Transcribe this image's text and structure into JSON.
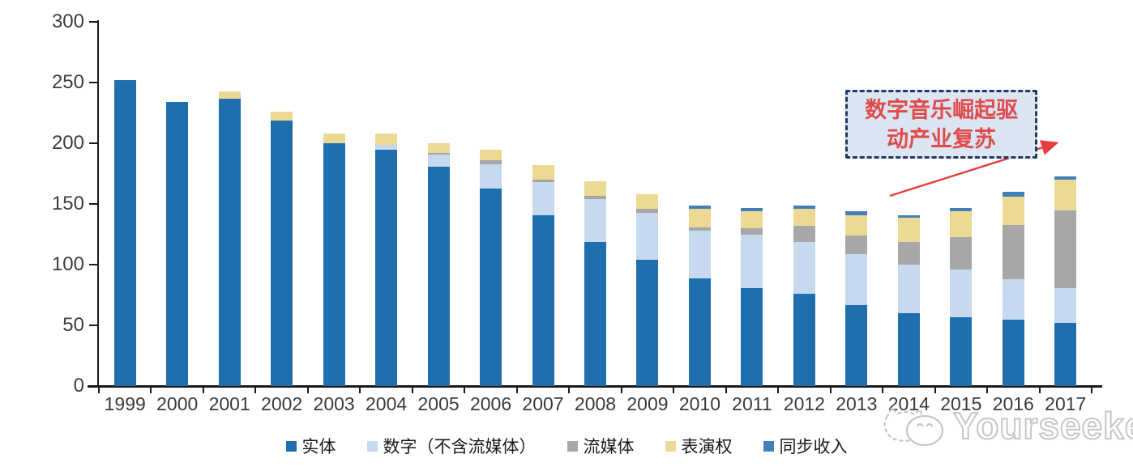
{
  "annotation": {
    "line1": "数字音乐崛起驱",
    "line2": "动产业复苏"
  },
  "watermark": {
    "brand": "Yourseeker"
  },
  "colors": {
    "physical": "#1f6fae",
    "digital": "#c6d9ee",
    "streaming": "#a7a7a7",
    "performance": "#ecd993",
    "sync": "#4280ba",
    "axis": "#1a1a1a",
    "annotation_border": "#1f3864",
    "annotation_fill": "#dbe6f2",
    "annotation_text": "#df4b4b",
    "arrow": "#e43d3d"
  },
  "chart_data": {
    "type": "bar",
    "stacked": true,
    "title": "",
    "xlabel": "",
    "ylabel": "",
    "ylim": [
      0,
      300
    ],
    "ytick_interval": 50,
    "grid": false,
    "legend_position": "bottom",
    "categories": [
      "1999",
      "2000",
      "2001",
      "2002",
      "2003",
      "2004",
      "2005",
      "2006",
      "2007",
      "2008",
      "2009",
      "2010",
      "2011",
      "2012",
      "2013",
      "2014",
      "2015",
      "2016",
      "2017"
    ],
    "series": [
      {
        "name": "实体",
        "color": "#1f6fae",
        "values": [
          252,
          234,
          237,
          219,
          200,
          195,
          181,
          163,
          141,
          119,
          104,
          89,
          81,
          76,
          67,
          60,
          57,
          55,
          52
        ]
      },
      {
        "name": "数字（不含流媒体）",
        "color": "#c6d9ee",
        "values": [
          0,
          0,
          0,
          0,
          0,
          4,
          10,
          20,
          27,
          35,
          39,
          39,
          44,
          43,
          42,
          40,
          39,
          33,
          29
        ]
      },
      {
        "name": "流媒体",
        "color": "#a7a7a7",
        "values": [
          0,
          0,
          0,
          0,
          0,
          0,
          1,
          3,
          2,
          3,
          3,
          3,
          5,
          13,
          15,
          19,
          27,
          45,
          64
        ]
      },
      {
        "name": "表演权",
        "color": "#ecd993",
        "values": [
          0,
          0,
          6,
          7,
          8,
          9,
          8,
          9,
          12,
          12,
          12,
          15,
          14,
          14,
          17,
          20,
          21,
          23,
          25
        ]
      },
      {
        "name": "同步收入",
        "color": "#4280ba",
        "values": [
          0,
          0,
          0,
          0,
          0,
          0,
          0,
          0,
          0,
          0,
          0,
          3,
          3,
          3,
          3,
          2,
          3,
          4,
          3
        ]
      }
    ],
    "totals": [
      252,
      234,
      243,
      226,
      208,
      208,
      200,
      195,
      182,
      169,
      158,
      149,
      147,
      149,
      144,
      141,
      147,
      160,
      173
    ]
  }
}
